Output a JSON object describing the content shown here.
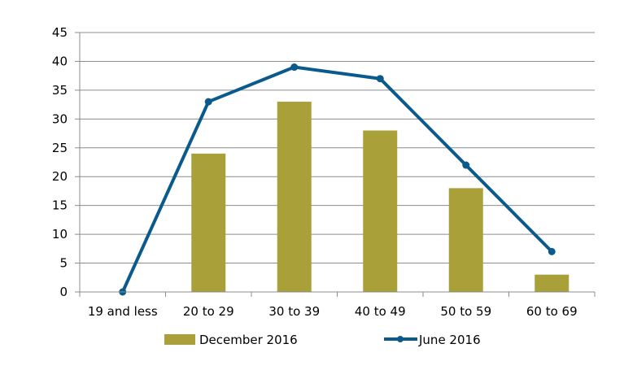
{
  "chart_data": {
    "type": "bar",
    "categories": [
      "19 and less",
      "20 to 29",
      "30 to 39",
      "40 to 49",
      "50 to 59",
      "60 to 69"
    ],
    "series": [
      {
        "name": "December 2016",
        "type": "bar",
        "color": "#a9a03a",
        "values": [
          0,
          24,
          33,
          28,
          18,
          3
        ]
      },
      {
        "name": "June 2016",
        "type": "line",
        "color": "#0b5a8c",
        "values": [
          0,
          33,
          39,
          37,
          22,
          7
        ]
      }
    ],
    "ylim": [
      0,
      45
    ],
    "yticks": [
      0,
      5,
      10,
      15,
      20,
      25,
      30,
      35,
      40,
      45
    ],
    "grid": true,
    "legend_position": "bottom",
    "title": "",
    "xlabel": "",
    "ylabel": ""
  }
}
